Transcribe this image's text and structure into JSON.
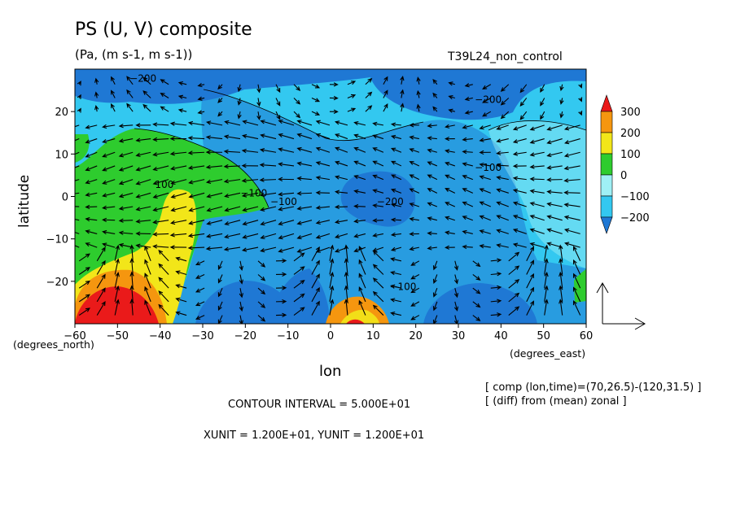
{
  "figure": {
    "title": "PS (U, V) composite",
    "units": "(Pa, (m s-1, m s-1))",
    "run_label": "T39L24_non_control",
    "contour_interval": "CONTOUR INTERVAL = 5.000E+01",
    "vector_units": "XUNIT = 1.200E+01, YUNIT = 1.200E+01",
    "comp_note": "[ comp (lon,time)=(70,26.5)-(120,31.5) ]",
    "diff_note": "[ (diff) from (mean) zonal ]"
  },
  "chart_data": {
    "type": "heatmap",
    "title": "PS (U, V) composite",
    "subtitle": "(Pa, (m s-1, m s-1))",
    "xlabel": "lon",
    "ylabel": "latitude",
    "x_unit_label": "(degrees_east)",
    "y_unit_label": "(degrees_north)",
    "xlim": [
      -60,
      60
    ],
    "ylim": [
      -30,
      30
    ],
    "x_ticks": [
      -60,
      -50,
      -40,
      -30,
      -20,
      -10,
      0,
      10,
      20,
      30,
      40,
      50,
      60
    ],
    "y_ticks": [
      -20,
      -10,
      0,
      10,
      20
    ],
    "colorbar": {
      "levels": [
        -200,
        -100,
        0,
        100,
        200,
        300
      ],
      "colors": [
        "#1f78d4",
        "#33c8f0",
        "#9ff0f5",
        "#2ecc2e",
        "#f2e619",
        "#f5960f",
        "#ea1a1a"
      ]
    },
    "contour_labels": [
      {
        "text": "-200",
        "lon": -44,
        "lat": 27
      },
      {
        "text": "-200",
        "lon": 37,
        "lat": 22
      },
      {
        "text": "-100",
        "lon": 37,
        "lat": 6
      },
      {
        "text": "100",
        "lon": -39,
        "lat": 2
      },
      {
        "text": "-100",
        "lon": -18,
        "lat": 0
      },
      {
        "text": "-100",
        "lon": -11,
        "lat": -2
      },
      {
        "text": "-200",
        "lon": 14,
        "lat": -2
      },
      {
        "text": "-100",
        "lon": 17,
        "lat": -22
      }
    ]
  }
}
